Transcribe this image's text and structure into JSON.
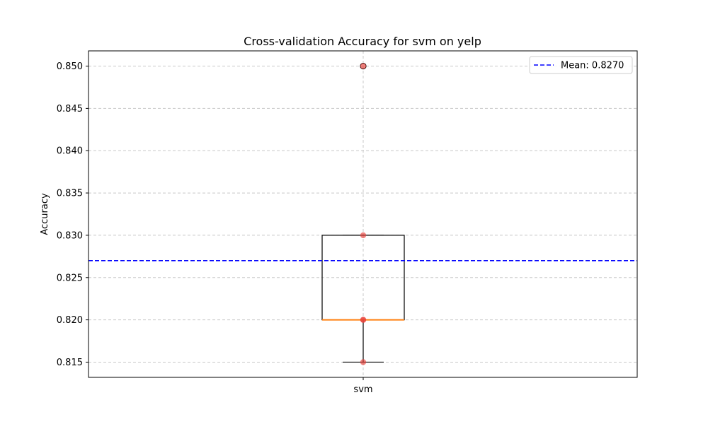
{
  "chart_data": {
    "type": "box",
    "title": "Cross-validation Accuracy for svm on yelp",
    "xlabel": "",
    "ylabel": "Accuracy",
    "categories": [
      "svm"
    ],
    "ylim": [
      0.8132,
      0.8518
    ],
    "yticks": [
      0.815,
      0.82,
      0.825,
      0.83,
      0.835,
      0.84,
      0.845,
      0.85
    ],
    "ytick_labels": [
      "0.815",
      "0.820",
      "0.825",
      "0.830",
      "0.835",
      "0.840",
      "0.845",
      "0.850"
    ],
    "grid": true,
    "legend_position": "top-right",
    "box": {
      "whisker_low": 0.815,
      "q1": 0.82,
      "median": 0.82,
      "q3": 0.83,
      "whisker_high": 0.83,
      "outliers": [
        0.85
      ]
    },
    "points": [
      0.85,
      0.83,
      0.82,
      0.82,
      0.815
    ],
    "mean": 0.827,
    "mean_label": "Mean: 0.8270",
    "colors": {
      "box": "#000000",
      "median": "#ff7f0e",
      "points": "#e8413b",
      "mean_line": "#0000ff",
      "grid": "#c8c8c8"
    }
  }
}
